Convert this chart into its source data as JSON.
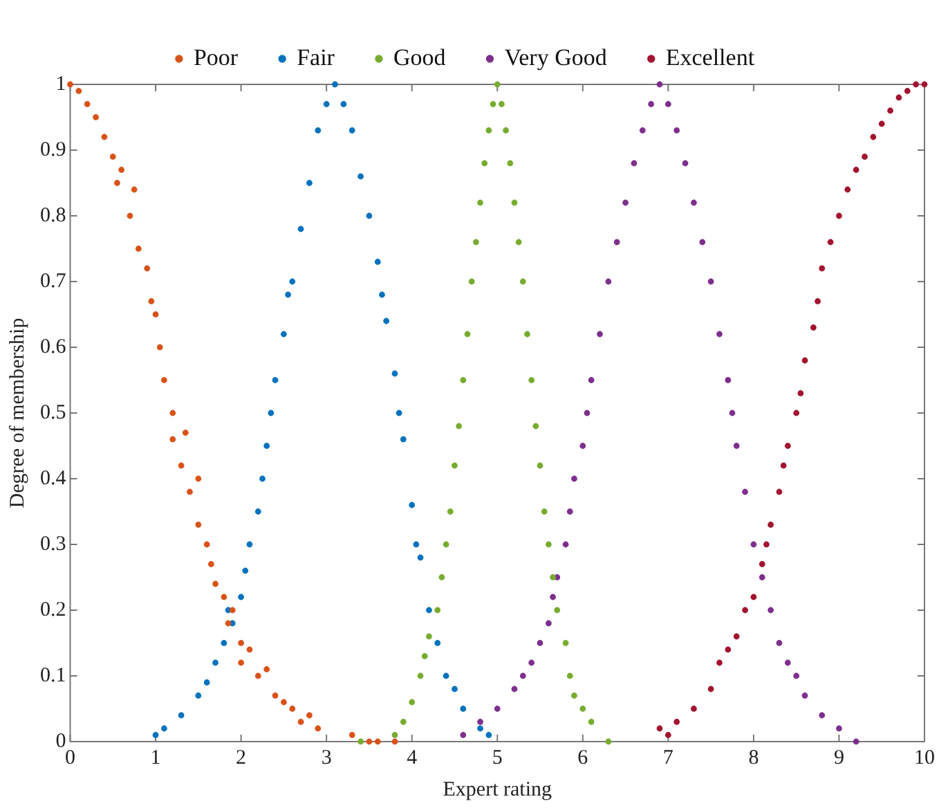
{
  "chart_data": {
    "type": "scatter",
    "xlabel": "Expert rating",
    "ylabel": "Degree of membership",
    "xlim": [
      0,
      10
    ],
    "xticks": [
      0,
      1,
      2,
      3,
      4,
      5,
      6,
      7,
      8,
      9,
      10
    ],
    "ylim": [
      0,
      1
    ],
    "yticks": [
      0,
      0.1,
      0.2,
      0.3,
      0.4,
      0.5,
      0.6,
      0.7,
      0.8,
      0.9,
      1
    ],
    "grid": false,
    "legend": "top",
    "marker": "circle",
    "series": [
      {
        "name": "Poor",
        "color": "#d95319",
        "x": [
          0,
          0.1,
          0.2,
          0.3,
          0.4,
          0.5,
          0.55,
          0.6,
          0.7,
          0.75,
          0.8,
          0.9,
          0.95,
          1.0,
          1.05,
          1.1,
          1.2,
          1.2,
          1.3,
          1.35,
          1.4,
          1.5,
          1.5,
          1.6,
          1.65,
          1.7,
          1.8,
          1.85,
          1.9,
          2.0,
          2.0,
          2.1,
          2.2,
          2.3,
          2.4,
          2.5,
          2.6,
          2.7,
          2.8,
          2.9,
          3.3,
          3.5,
          3.6,
          3.8
        ],
        "values": [
          1,
          0.99,
          0.97,
          0.95,
          0.92,
          0.89,
          0.85,
          0.87,
          0.8,
          0.84,
          0.75,
          0.72,
          0.67,
          0.65,
          0.6,
          0.55,
          0.5,
          0.46,
          0.42,
          0.47,
          0.38,
          0.33,
          0.4,
          0.3,
          0.27,
          0.24,
          0.22,
          0.18,
          0.2,
          0.15,
          0.12,
          0.14,
          0.1,
          0.11,
          0.07,
          0.06,
          0.05,
          0.03,
          0.04,
          0.02,
          0.01,
          0.0,
          0.0,
          0.0
        ]
      },
      {
        "name": "Fair",
        "color": "#0072bd",
        "x": [
          1.0,
          1.1,
          1.3,
          1.5,
          1.6,
          1.7,
          1.8,
          1.85,
          1.9,
          2.0,
          2.05,
          2.1,
          2.2,
          2.25,
          2.3,
          2.35,
          2.4,
          2.5,
          2.55,
          2.6,
          2.7,
          2.8,
          2.9,
          3.0,
          3.1,
          3.2,
          3.3,
          3.4,
          3.5,
          3.6,
          3.65,
          3.7,
          3.8,
          3.85,
          3.9,
          4.0,
          4.05,
          4.1,
          4.2,
          4.3,
          4.4,
          4.5,
          4.6,
          4.8,
          4.9
        ],
        "values": [
          0.01,
          0.02,
          0.04,
          0.07,
          0.09,
          0.12,
          0.15,
          0.2,
          0.18,
          0.22,
          0.26,
          0.3,
          0.35,
          0.4,
          0.45,
          0.5,
          0.55,
          0.62,
          0.68,
          0.7,
          0.78,
          0.85,
          0.93,
          0.97,
          1,
          0.97,
          0.93,
          0.86,
          0.8,
          0.73,
          0.68,
          0.64,
          0.56,
          0.5,
          0.46,
          0.36,
          0.3,
          0.28,
          0.2,
          0.15,
          0.1,
          0.08,
          0.05,
          0.02,
          0.01
        ]
      },
      {
        "name": "Good",
        "color": "#77ac30",
        "x": [
          3.4,
          3.8,
          3.9,
          4.0,
          4.1,
          4.15,
          4.2,
          4.3,
          4.35,
          4.4,
          4.45,
          4.5,
          4.55,
          4.6,
          4.65,
          4.7,
          4.75,
          4.8,
          4.85,
          4.9,
          4.95,
          5.0,
          5.05,
          5.1,
          5.15,
          5.2,
          5.25,
          5.3,
          5.35,
          5.4,
          5.45,
          5.5,
          5.55,
          5.6,
          5.65,
          5.7,
          5.8,
          5.85,
          5.9,
          6.0,
          6.1,
          6.3
        ],
        "values": [
          0,
          0.01,
          0.03,
          0.06,
          0.1,
          0.13,
          0.16,
          0.2,
          0.25,
          0.3,
          0.35,
          0.42,
          0.48,
          0.55,
          0.62,
          0.7,
          0.76,
          0.82,
          0.88,
          0.93,
          0.97,
          1,
          0.97,
          0.93,
          0.88,
          0.82,
          0.76,
          0.7,
          0.62,
          0.55,
          0.48,
          0.42,
          0.35,
          0.3,
          0.25,
          0.2,
          0.15,
          0.1,
          0.07,
          0.05,
          0.03,
          0
        ]
      },
      {
        "name": "Very Good",
        "color": "#7e2f8e",
        "x": [
          4.6,
          4.8,
          5.0,
          5.2,
          5.3,
          5.4,
          5.5,
          5.6,
          5.65,
          5.7,
          5.8,
          5.85,
          5.9,
          6.0,
          6.05,
          6.1,
          6.2,
          6.3,
          6.4,
          6.5,
          6.6,
          6.7,
          6.8,
          6.9,
          7.0,
          7.1,
          7.2,
          7.3,
          7.4,
          7.5,
          7.6,
          7.7,
          7.75,
          7.8,
          7.9,
          8.0,
          8.1,
          8.2,
          8.3,
          8.4,
          8.5,
          8.6,
          8.8,
          9.0,
          9.2
        ],
        "values": [
          0.01,
          0.03,
          0.05,
          0.08,
          0.1,
          0.12,
          0.15,
          0.18,
          0.22,
          0.25,
          0.3,
          0.35,
          0.4,
          0.45,
          0.5,
          0.55,
          0.62,
          0.7,
          0.76,
          0.82,
          0.88,
          0.93,
          0.97,
          1,
          0.97,
          0.93,
          0.88,
          0.82,
          0.76,
          0.7,
          0.62,
          0.55,
          0.5,
          0.45,
          0.38,
          0.3,
          0.25,
          0.2,
          0.15,
          0.12,
          0.1,
          0.07,
          0.04,
          0.02,
          0
        ]
      },
      {
        "name": "Excellent",
        "color": "#a2142f",
        "x": [
          6.9,
          7.0,
          7.1,
          7.3,
          7.5,
          7.6,
          7.7,
          7.8,
          7.9,
          8.0,
          8.1,
          8.15,
          8.2,
          8.3,
          8.35,
          8.4,
          8.5,
          8.55,
          8.6,
          8.7,
          8.75,
          8.8,
          8.9,
          9.0,
          9.1,
          9.2,
          9.3,
          9.4,
          9.5,
          9.6,
          9.7,
          9.8,
          9.9,
          10
        ],
        "values": [
          0.02,
          0.01,
          0.03,
          0.05,
          0.08,
          0.12,
          0.14,
          0.16,
          0.2,
          0.22,
          0.27,
          0.3,
          0.33,
          0.38,
          0.42,
          0.45,
          0.5,
          0.53,
          0.58,
          0.63,
          0.67,
          0.72,
          0.76,
          0.8,
          0.84,
          0.87,
          0.89,
          0.92,
          0.94,
          0.96,
          0.98,
          0.99,
          1,
          1
        ]
      }
    ]
  }
}
